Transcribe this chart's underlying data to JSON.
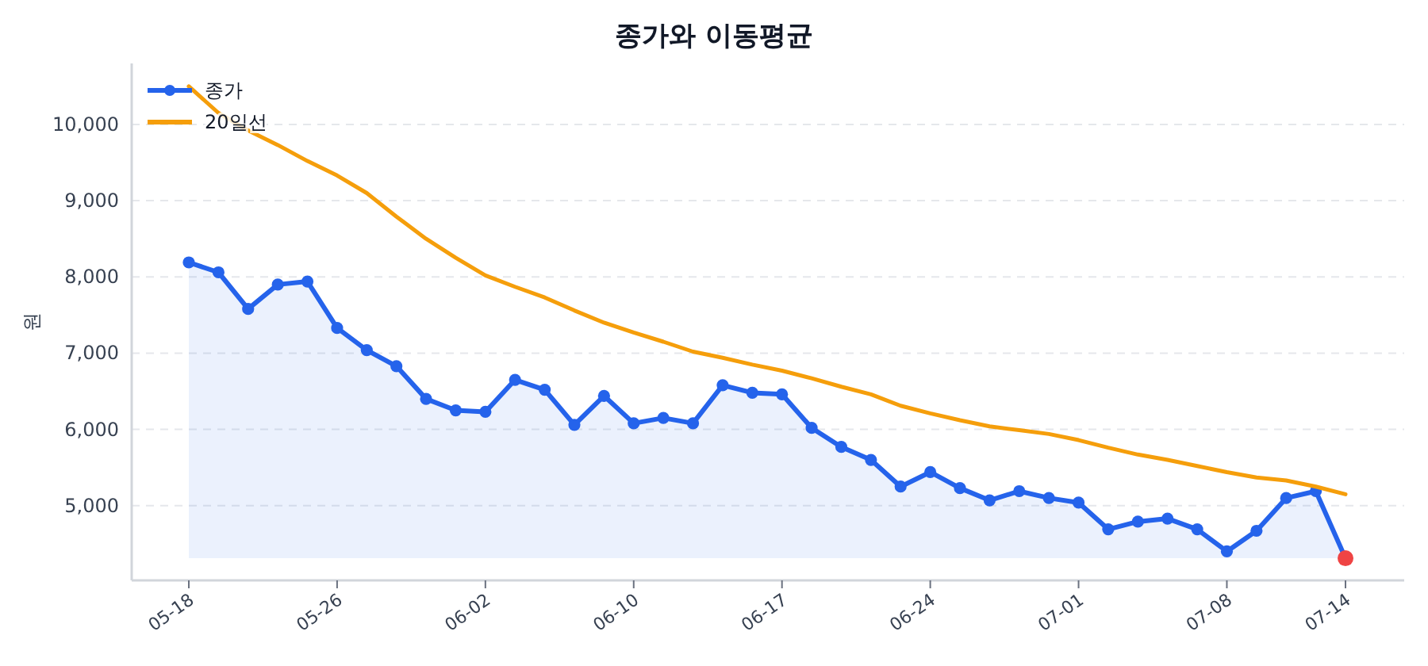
{
  "chart_data": {
    "type": "line",
    "title": "종가와 이동평균",
    "ylabel": "원",
    "categories": [
      "05-18",
      null,
      null,
      null,
      null,
      "05-26",
      null,
      null,
      null,
      null,
      "06-02",
      null,
      null,
      null,
      null,
      "06-10",
      null,
      null,
      null,
      null,
      "06-17",
      null,
      null,
      null,
      null,
      "06-24",
      null,
      null,
      null,
      null,
      "07-01",
      null,
      null,
      null,
      null,
      "07-08",
      null,
      null,
      null,
      "07-14"
    ],
    "series": [
      {
        "name": "종가",
        "type": "area",
        "color": "#2563eb",
        "marker": "circle",
        "values": [
          8190,
          8060,
          7580,
          7900,
          7940,
          7330,
          7040,
          6830,
          6400,
          6250,
          6230,
          6650,
          6520,
          6060,
          6440,
          6080,
          6150,
          6080,
          6580,
          6480,
          6460,
          6020,
          5770,
          5600,
          5250,
          5440,
          5230,
          5070,
          5190,
          5100,
          5040,
          4690,
          4790,
          4830,
          4690,
          4400,
          4670,
          5100,
          5190,
          4310
        ]
      },
      {
        "name": "20일선",
        "color": "#f59e0b",
        "marker": "none",
        "values": [
          10500,
          10150,
          9920,
          9730,
          9520,
          9330,
          9100,
          8790,
          8500,
          8250,
          8020,
          7870,
          7730,
          7560,
          7400,
          7270,
          7150,
          7020,
          6940,
          6850,
          6770,
          6670,
          6560,
          6460,
          6310,
          6210,
          6120,
          6040,
          5990,
          5940,
          5860,
          5760,
          5670,
          5600,
          5520,
          5440,
          5370,
          5330,
          5250,
          5150
        ]
      },
      {
        "type": "scatter",
        "color": "#ef4444",
        "marker": "circle",
        "values": [
          null,
          null,
          null,
          null,
          null,
          null,
          null,
          null,
          null,
          null,
          null,
          null,
          null,
          null,
          null,
          null,
          null,
          null,
          null,
          null,
          null,
          null,
          null,
          null,
          null,
          null,
          null,
          null,
          null,
          null,
          null,
          null,
          null,
          null,
          null,
          null,
          null,
          null,
          null,
          4310
        ]
      }
    ],
    "ylim": [
      4020,
      10800
    ],
    "yticks": [
      {
        "value": 5000,
        "label": "5,000"
      },
      {
        "value": 6000,
        "label": "6,000"
      },
      {
        "value": 7000,
        "label": "7,000"
      },
      {
        "value": 8000,
        "label": "8,000"
      },
      {
        "value": 9000,
        "label": "9,000"
      },
      {
        "value": 10000,
        "label": "10,000"
      }
    ],
    "grid": "y",
    "legend": "top left"
  }
}
